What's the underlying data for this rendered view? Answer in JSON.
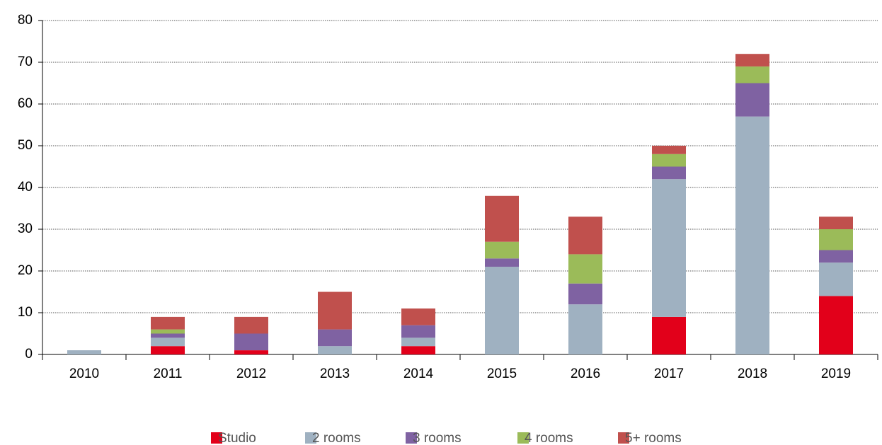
{
  "chart_data": {
    "type": "stacked-bar",
    "categories": [
      "2010",
      "2011",
      "2012",
      "2013",
      "2014",
      "2015",
      "2016",
      "2017",
      "2018",
      "2019"
    ],
    "series": [
      {
        "name": "Studio",
        "color": "#e2001a",
        "values": [
          0,
          2,
          1,
          0,
          2,
          0,
          0,
          9,
          0,
          14
        ]
      },
      {
        "name": "2 rooms",
        "color": "#9fb1c1",
        "values": [
          1,
          2,
          0,
          2,
          2,
          21,
          12,
          33,
          57,
          8
        ]
      },
      {
        "name": "3 rooms",
        "color": "#7f62a2",
        "values": [
          0,
          1,
          4,
          4,
          3,
          2,
          5,
          3,
          8,
          3
        ]
      },
      {
        "name": "4 rooms",
        "color": "#9bbb59",
        "values": [
          0,
          1,
          0,
          0,
          0,
          4,
          7,
          3,
          4,
          5
        ]
      },
      {
        "name": "5+ rooms",
        "color": "#c0504d",
        "values": [
          0,
          3,
          4,
          9,
          4,
          11,
          9,
          2,
          3,
          3
        ]
      }
    ],
    "ylim": [
      0,
      80
    ],
    "yticks": [
      0,
      10,
      20,
      30,
      40,
      50,
      60,
      70,
      80
    ],
    "grid": true,
    "legend": "bottom"
  }
}
